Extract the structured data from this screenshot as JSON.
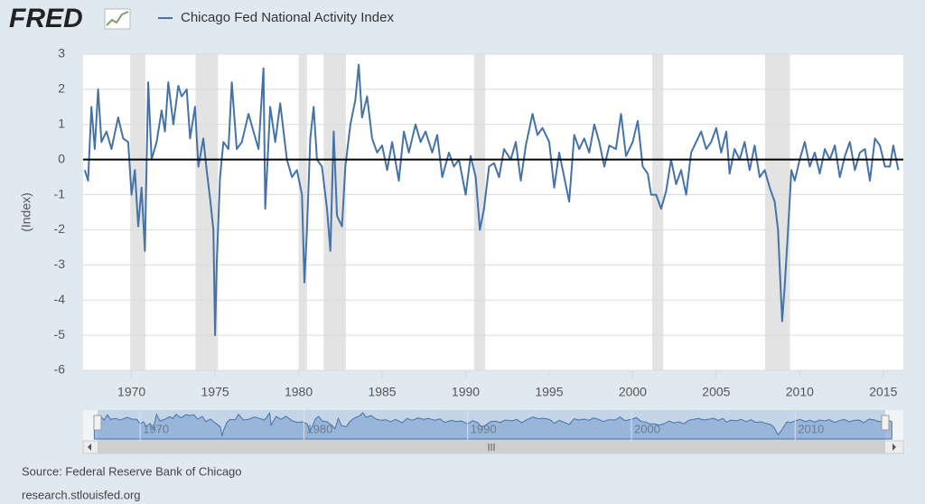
{
  "chart_data": {
    "type": "line",
    "logo": "FRED",
    "ylabel": "(Index)",
    "source": "Source: Federal Reserve Bank of Chicago",
    "site": "research.stlouisfed.org",
    "xlim": [
      1967.1,
      2016.2
    ],
    "xticks": [
      1970,
      1975,
      1980,
      1985,
      1990,
      1995,
      2000,
      2005,
      2010,
      2015
    ],
    "ylim": [
      -6,
      3
    ],
    "yticks": [
      -6,
      -5,
      -4,
      -3,
      -2,
      -1,
      0,
      1,
      2,
      3
    ],
    "grid": true,
    "legend": "top",
    "recession_color": "#e3e3e3",
    "recessions": [
      [
        1969.92,
        1970.83
      ],
      [
        1973.83,
        1975.17
      ],
      [
        1980.0,
        1980.5
      ],
      [
        1981.5,
        1982.83
      ],
      [
        1990.5,
        1991.17
      ],
      [
        2001.17,
        2001.83
      ],
      [
        2007.92,
        2009.42
      ]
    ],
    "navigator": {
      "xlim": [
        1967.4,
        2015.5
      ],
      "xticks": [
        1970,
        1980,
        1990,
        2000,
        2010
      ]
    },
    "series": [
      {
        "name": "Chicago Fed National Activity Index",
        "color": "#4572a7",
        "x": [
          1967.2,
          1967.4,
          1967.6,
          1967.8,
          1968.0,
          1968.2,
          1968.5,
          1968.8,
          1969.2,
          1969.5,
          1969.8,
          1970.0,
          1970.2,
          1970.4,
          1970.6,
          1970.8,
          1971.0,
          1971.2,
          1971.5,
          1971.8,
          1972.0,
          1972.2,
          1972.5,
          1972.8,
          1973.0,
          1973.3,
          1973.5,
          1973.8,
          1974.0,
          1974.3,
          1974.5,
          1974.7,
          1974.9,
          1975.0,
          1975.1,
          1975.3,
          1975.5,
          1975.8,
          1976.0,
          1976.3,
          1976.6,
          1977.0,
          1977.3,
          1977.6,
          1977.9,
          1978.0,
          1978.3,
          1978.6,
          1978.9,
          1979.3,
          1979.6,
          1979.9,
          1980.2,
          1980.35,
          1980.5,
          1980.7,
          1980.9,
          1981.1,
          1981.4,
          1981.7,
          1981.9,
          1982.1,
          1982.3,
          1982.6,
          1982.8,
          1983.1,
          1983.4,
          1983.6,
          1983.8,
          1984.1,
          1984.4,
          1984.7,
          1985.0,
          1985.3,
          1985.6,
          1986.0,
          1986.3,
          1986.6,
          1987.0,
          1987.3,
          1987.6,
          1988.0,
          1988.3,
          1988.6,
          1989.0,
          1989.3,
          1989.6,
          1990.0,
          1990.3,
          1990.6,
          1990.85,
          1991.1,
          1991.4,
          1991.7,
          1992.0,
          1992.3,
          1992.7,
          1993.0,
          1993.3,
          1993.6,
          1994.0,
          1994.3,
          1994.6,
          1995.0,
          1995.3,
          1995.6,
          1995.9,
          1996.2,
          1996.5,
          1996.8,
          1997.1,
          1997.4,
          1997.7,
          1998.0,
          1998.3,
          1998.6,
          1999.0,
          1999.3,
          1999.6,
          2000.0,
          2000.3,
          2000.6,
          2000.9,
          2001.1,
          2001.4,
          2001.7,
          2002.0,
          2002.3,
          2002.6,
          2002.9,
          2003.2,
          2003.5,
          2003.8,
          2004.1,
          2004.4,
          2004.7,
          2005.0,
          2005.3,
          2005.6,
          2005.8,
          2006.1,
          2006.4,
          2006.7,
          2007.0,
          2007.3,
          2007.6,
          2007.9,
          2008.2,
          2008.5,
          2008.7,
          2008.85,
          2008.95,
          2009.1,
          2009.3,
          2009.5,
          2009.7,
          2010.0,
          2010.3,
          2010.6,
          2010.9,
          2011.2,
          2011.5,
          2011.8,
          2012.1,
          2012.4,
          2012.7,
          2013.0,
          2013.3,
          2013.6,
          2013.9,
          2014.2,
          2014.5,
          2014.8,
          2015.1,
          2015.4,
          2015.6,
          2015.9
        ],
        "values": [
          -0.3,
          -0.6,
          1.5,
          0.3,
          2.0,
          0.5,
          0.8,
          0.3,
          1.2,
          0.6,
          0.5,
          -1.0,
          -0.3,
          -1.9,
          -0.8,
          -2.6,
          2.2,
          0.0,
          0.5,
          1.4,
          0.8,
          2.2,
          1.0,
          2.1,
          1.8,
          2.0,
          0.6,
          1.5,
          -0.2,
          0.6,
          -0.3,
          -1.1,
          -2.0,
          -5.0,
          -3.0,
          -0.5,
          0.5,
          0.3,
          2.2,
          0.3,
          0.5,
          1.3,
          0.8,
          0.3,
          2.6,
          -1.4,
          1.5,
          0.5,
          1.6,
          0.0,
          -0.5,
          -0.3,
          -1.0,
          -3.5,
          -2.0,
          0.6,
          1.5,
          0.0,
          -0.2,
          -1.4,
          -2.6,
          0.8,
          -1.6,
          -1.9,
          -0.2,
          1.0,
          1.7,
          2.7,
          1.2,
          1.8,
          0.6,
          0.2,
          0.4,
          -0.3,
          0.5,
          -0.6,
          0.8,
          0.2,
          1.0,
          0.5,
          0.8,
          0.2,
          0.7,
          -0.5,
          0.2,
          -0.2,
          0.0,
          -1.0,
          0.1,
          -0.5,
          -2.0,
          -1.4,
          -0.2,
          -0.1,
          -0.5,
          0.3,
          0.0,
          0.5,
          -0.6,
          0.4,
          1.3,
          0.7,
          0.9,
          0.5,
          -0.8,
          0.2,
          -0.5,
          -1.2,
          0.7,
          0.3,
          0.6,
          0.2,
          1.0,
          0.5,
          -0.2,
          0.4,
          0.3,
          1.3,
          0.1,
          0.5,
          1.1,
          -0.2,
          -0.4,
          -1.0,
          -1.0,
          -1.4,
          -0.9,
          0.0,
          -0.7,
          -0.3,
          -1.0,
          0.2,
          0.5,
          0.8,
          0.3,
          0.5,
          0.9,
          0.2,
          0.8,
          -0.4,
          0.3,
          0.0,
          0.5,
          -0.3,
          0.4,
          -0.5,
          -0.3,
          -0.8,
          -1.2,
          -2.0,
          -3.6,
          -4.6,
          -3.6,
          -2.0,
          -0.3,
          -0.6,
          0.0,
          0.5,
          -0.2,
          0.2,
          -0.4,
          0.3,
          0.0,
          0.4,
          -0.5,
          0.1,
          0.5,
          -0.3,
          0.2,
          0.3,
          -0.6,
          0.6,
          0.4,
          -0.2,
          -0.2,
          0.4,
          -0.3
        ]
      }
    ]
  }
}
